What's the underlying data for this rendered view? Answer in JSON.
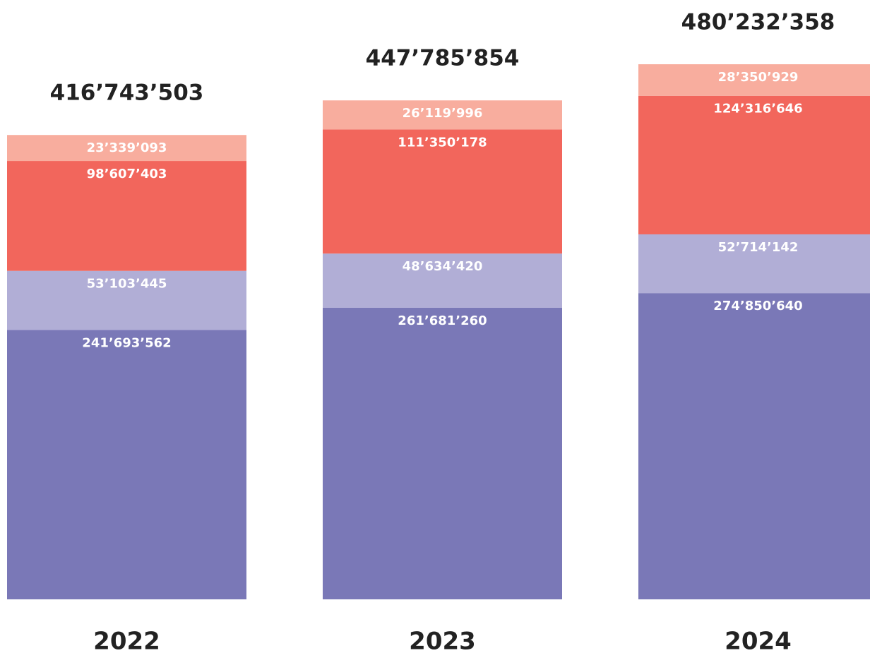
{
  "chart_data": {
    "type": "stacked_bar",
    "categories": [
      "2022",
      "2023",
      "2024"
    ],
    "series": [
      {
        "color": "#7a78b7",
        "values": [
          241693562,
          261681260,
          274850640
        ],
        "value_labels": [
          "241’693’562",
          "261’681’260",
          "274’850’640"
        ]
      },
      {
        "color": "#b1aed6",
        "values": [
          53103445,
          48634420,
          52714142
        ],
        "value_labels": [
          "53’103’445",
          "48’634’420",
          "52’714’142"
        ]
      },
      {
        "color": "#f2665c",
        "values": [
          98607403,
          111350178,
          124316646
        ],
        "value_labels": [
          "98’607’403",
          "111’350’178",
          "124’316’646"
        ]
      },
      {
        "color": "#f8ad9e",
        "values": [
          23339093,
          26119996,
          28350929
        ],
        "value_labels": [
          "23’339’093",
          "26’119’996",
          "28’350’929"
        ]
      }
    ],
    "totals": [
      416743503,
      447785854,
      480232358
    ],
    "total_labels": [
      "416’743’503",
      "447’785’854",
      "480’232’358"
    ]
  }
}
